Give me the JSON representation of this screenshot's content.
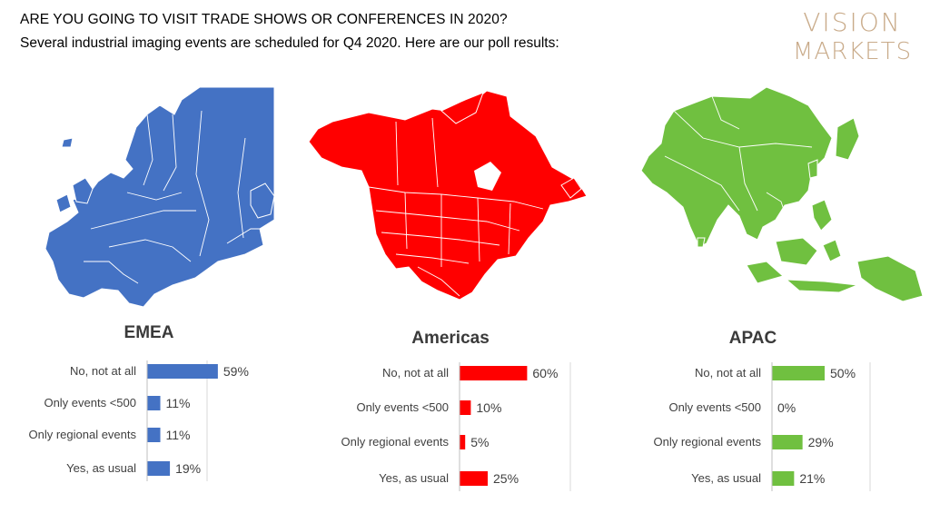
{
  "header": {
    "title": "ARE YOU GOING TO VISIT TRADE SHOWS OR CONFERENCES IN 2020?",
    "subtitle": "Several industrial imaging events are scheduled for Q4 2020. Here are our poll results:"
  },
  "logo": {
    "line1": "VISION",
    "line2": "MARKETS",
    "color": "#c9ab8a"
  },
  "regions": {
    "emea": {
      "label": "EMEA",
      "map_icon": "europe-map-icon",
      "color": "#4472c4"
    },
    "americas": {
      "label": "Americas",
      "map_icon": "north-america-map-icon",
      "color": "#ff0000"
    },
    "apac": {
      "label": "APAC",
      "map_icon": "asia-pacific-map-icon",
      "color": "#70c040"
    }
  },
  "chart_data": [
    {
      "type": "bar",
      "orientation": "horizontal",
      "title": "EMEA",
      "categories": [
        "No, not at all",
        "Only events <500",
        "Only regional events",
        "Yes, as usual"
      ],
      "values": [
        59,
        11,
        11,
        19
      ],
      "value_labels": [
        "59%",
        "11%",
        "11%",
        "19%"
      ],
      "unit": "%",
      "xlim": [
        0,
        100
      ],
      "color": "#4472c4"
    },
    {
      "type": "bar",
      "orientation": "horizontal",
      "title": "Americas",
      "categories": [
        "No, not at all",
        "Only events <500",
        "Only regional events",
        "Yes, as usual"
      ],
      "values": [
        60,
        10,
        5,
        25
      ],
      "value_labels": [
        "60%",
        "10%",
        "5%",
        "25%"
      ],
      "unit": "%",
      "xlim": [
        0,
        100
      ],
      "color": "#ff0000"
    },
    {
      "type": "bar",
      "orientation": "horizontal",
      "title": "APAC",
      "categories": [
        "No, not at all",
        "Only events <500",
        "Only regional events",
        "Yes, as usual"
      ],
      "values": [
        50,
        0,
        29,
        21
      ],
      "value_labels": [
        "50%",
        "0%",
        "29%",
        "21%"
      ],
      "unit": "%",
      "xlim": [
        0,
        100
      ],
      "color": "#70c040"
    }
  ]
}
